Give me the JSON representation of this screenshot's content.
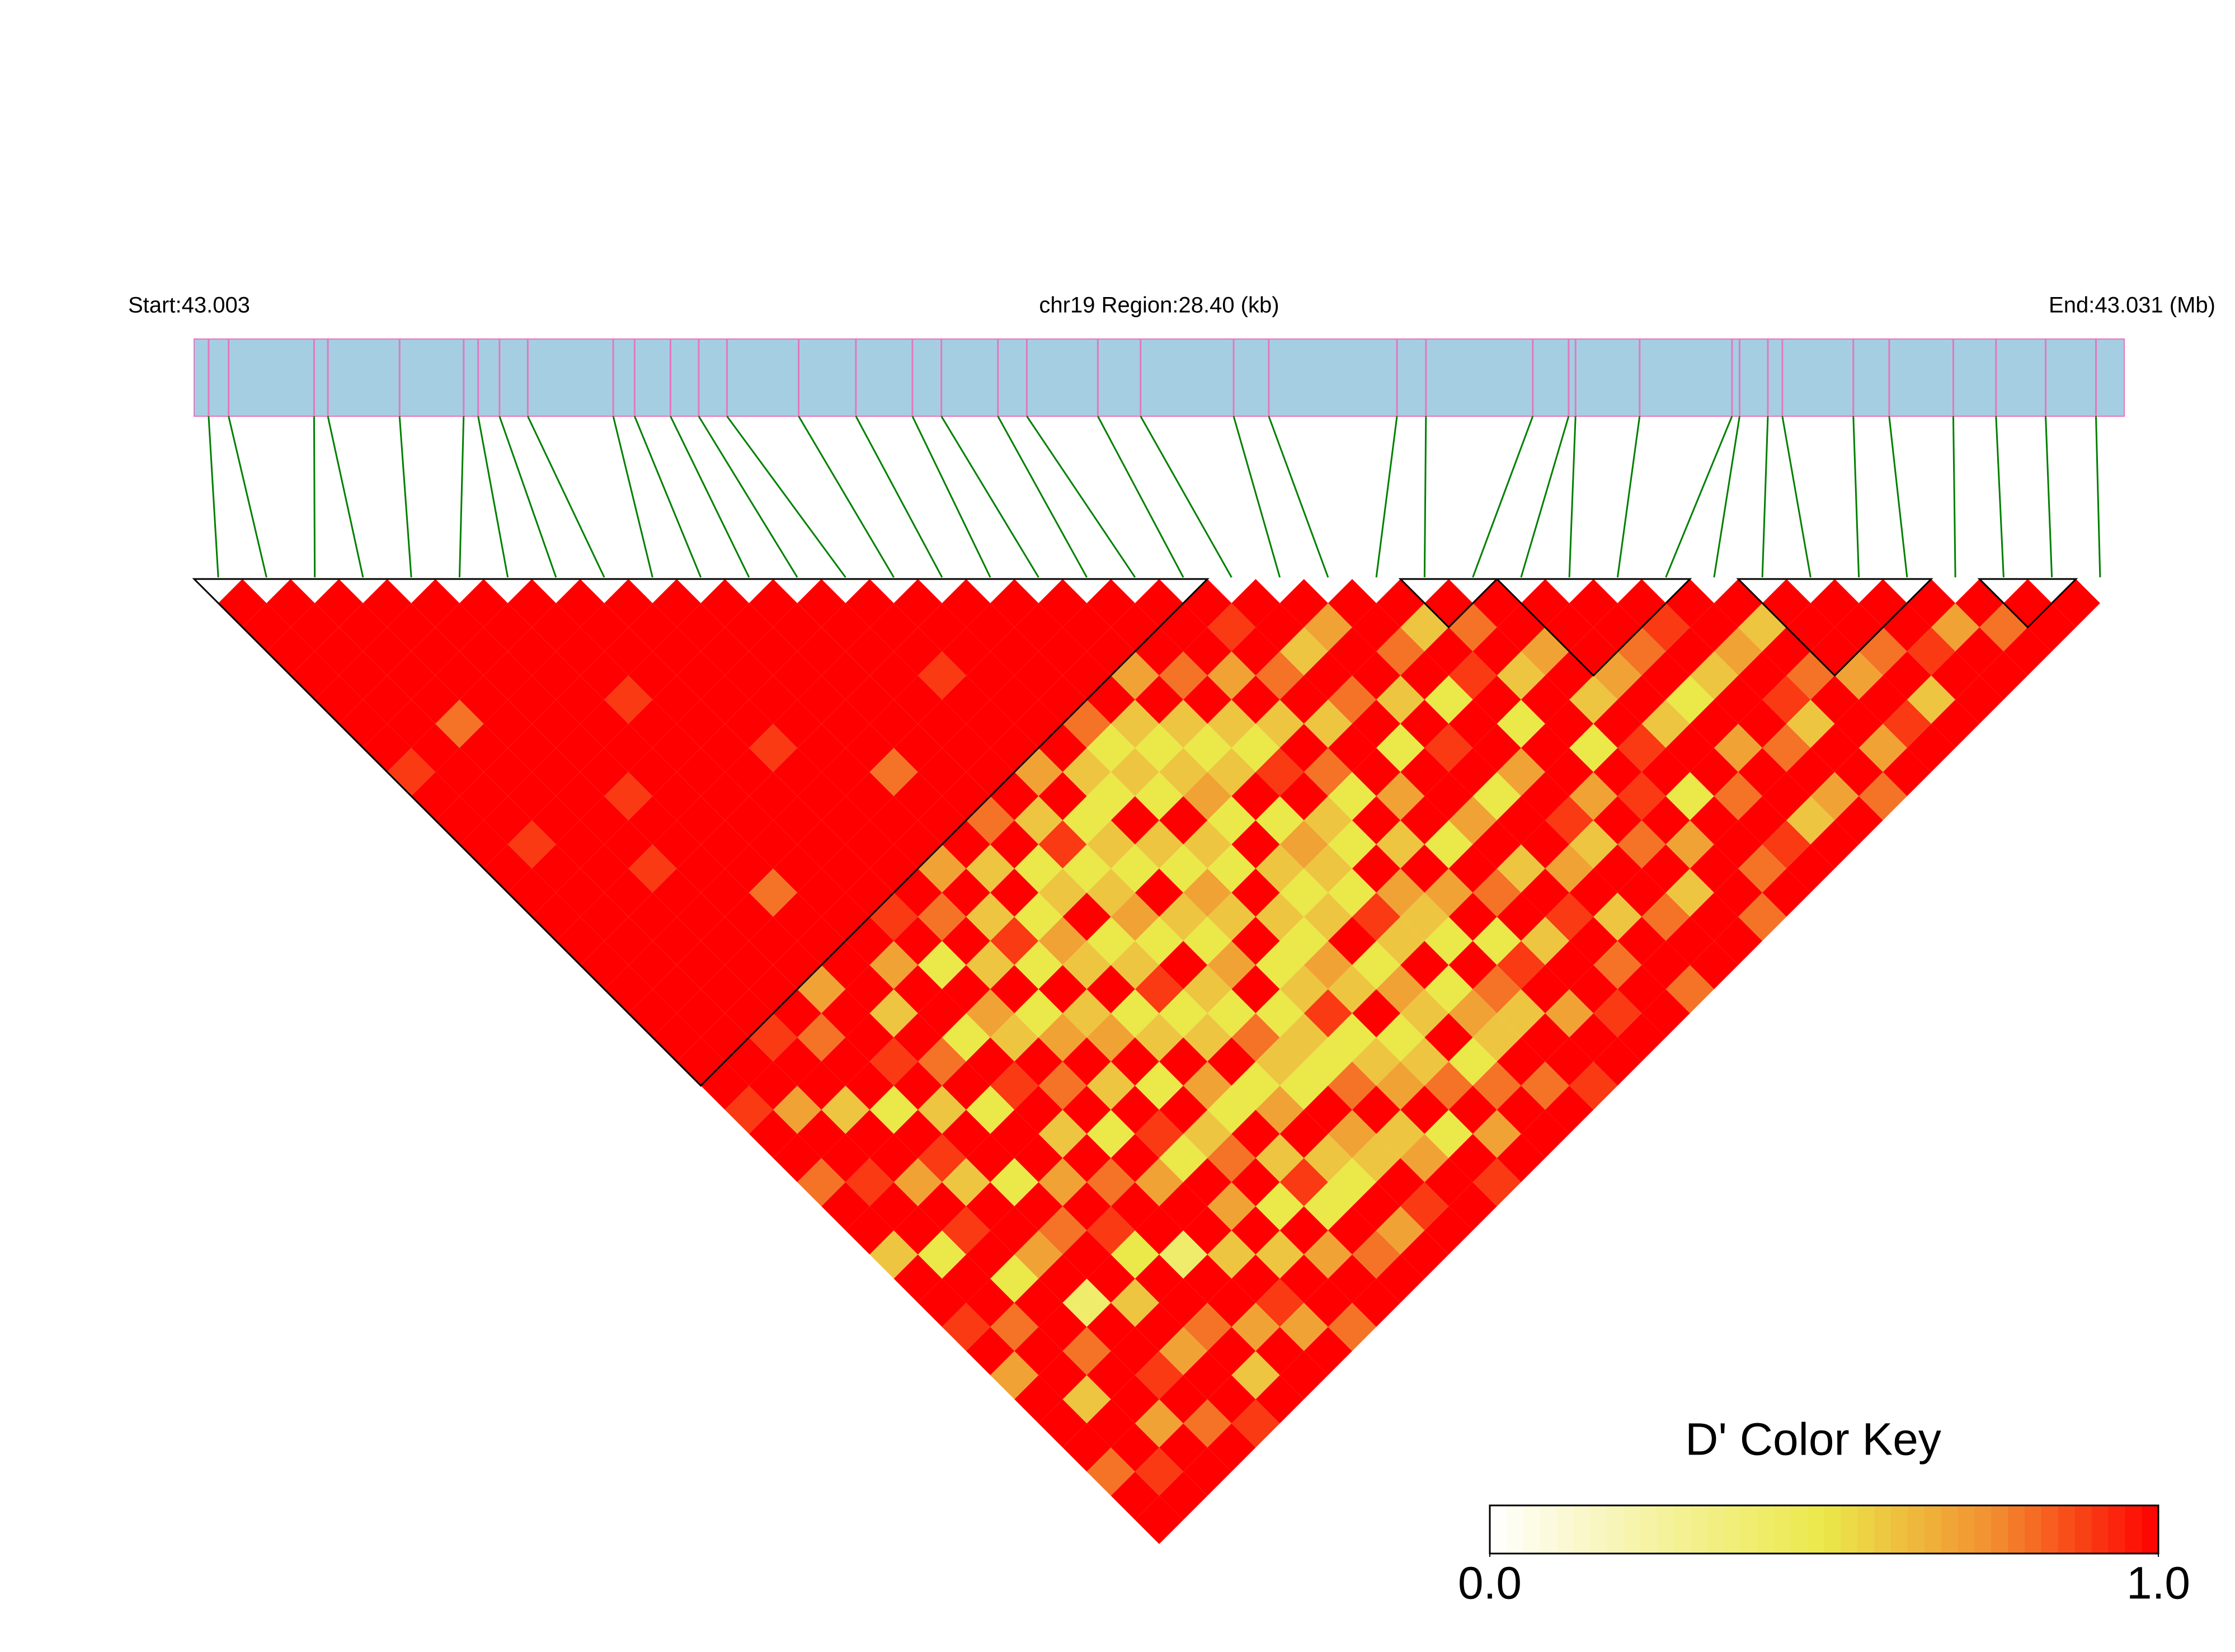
{
  "chart_data": {
    "type": "ld_heatmap",
    "header": {
      "start": "Start:43.003",
      "region": "chr19 Region:28.40 (kb)",
      "end": "End:43.031 (Mb)"
    },
    "xlim": [
      43.003,
      43.031
    ],
    "positions": [
      43.00321,
      43.0035,
      43.00474,
      43.00494,
      43.00598,
      43.00691,
      43.00712,
      43.00743,
      43.00784,
      43.00908,
      43.00939,
      43.00991,
      43.01032,
      43.01073,
      43.01177,
      43.0126,
      43.01342,
      43.01384,
      43.01466,
      43.01508,
      43.01611,
      43.01673,
      43.01808,
      43.01859,
      43.02045,
      43.02087,
      43.02242,
      43.02294,
      43.02304,
      43.02397,
      43.02531,
      43.02542,
      43.02583,
      43.02604,
      43.02707,
      43.02759,
      43.02852,
      43.02914,
      43.02986,
      43.03059
    ],
    "dprime": [
      [
        1,
        1,
        1,
        1,
        1,
        1,
        1,
        0.9,
        1,
        1,
        1,
        1,
        1,
        1,
        1,
        1,
        1,
        1,
        1,
        1,
        1,
        0.9,
        1,
        1,
        0.8,
        1,
        1,
        0.6,
        1,
        1,
        0.9,
        1,
        0.7,
        1,
        1,
        1,
        0.8,
        1,
        1
      ],
      [
        1,
        1,
        1,
        1,
        1,
        1,
        1,
        1,
        1,
        1,
        0.9,
        1,
        1,
        1,
        1,
        1,
        1,
        1,
        1,
        1,
        1,
        0.7,
        1,
        1,
        0.9,
        1,
        1,
        0.5,
        1,
        1,
        0.8,
        1,
        1,
        0.6,
        1,
        1,
        0.9,
        1
      ],
      [
        1,
        1,
        1,
        1,
        1,
        0.8,
        1,
        1,
        1,
        1,
        1,
        1,
        1,
        1,
        1,
        1,
        1,
        1,
        0.9,
        1,
        1,
        0.6,
        1,
        1,
        0.7,
        1,
        0.9,
        1,
        0.5,
        1,
        1,
        0.8,
        1,
        1,
        0.7,
        1,
        1
      ],
      [
        1,
        1,
        1,
        1,
        1,
        1,
        1,
        1,
        1,
        1,
        1,
        0.9,
        1,
        1,
        1,
        1,
        1,
        1,
        0.8,
        1,
        1,
        0.5,
        1,
        0.9,
        0.6,
        1,
        1,
        0.7,
        1,
        0.4,
        1,
        1,
        0.9,
        1,
        0.8,
        1
      ],
      [
        1,
        1,
        1,
        1,
        1,
        1,
        1,
        1,
        0.9,
        1,
        1,
        1,
        1,
        1,
        1,
        1,
        0.7,
        1,
        1,
        0.9,
        1,
        0.6,
        1,
        1,
        0.5,
        1,
        0.8,
        1,
        1,
        0.6,
        1,
        0.7,
        1,
        1,
        0.9
      ],
      [
        1,
        1,
        1,
        1,
        1,
        1,
        1,
        1,
        1,
        1,
        1,
        1,
        0.8,
        1,
        1,
        1,
        1,
        0.6,
        1,
        0.8,
        1,
        0.5,
        1,
        1,
        0.7,
        1,
        0.9,
        0.5,
        1,
        1,
        0.8,
        1,
        0.6,
        1
      ],
      [
        1,
        1,
        1,
        1,
        0.9,
        1,
        1,
        1,
        1,
        1,
        1,
        1,
        1,
        1,
        1,
        0.7,
        1,
        1,
        0.5,
        1,
        0.9,
        1,
        0.6,
        1,
        0.8,
        1,
        1,
        0.4,
        1,
        1,
        0.7,
        1,
        1
      ],
      [
        1,
        1,
        1,
        1,
        1,
        1,
        1,
        1,
        1,
        1,
        1,
        1,
        1,
        0.9,
        1,
        0.5,
        1,
        0.7,
        0.6,
        1,
        0.8,
        1,
        0.5,
        1,
        0.7,
        1,
        1,
        0.6,
        1,
        0.9,
        0.7,
        1
      ],
      [
        1,
        1,
        1,
        1,
        1,
        1,
        0.9,
        1,
        1,
        1,
        1,
        1,
        1,
        0.8,
        1,
        0.6,
        1,
        0.5,
        0.7,
        1,
        0.6,
        1,
        0.9,
        0.5,
        1,
        0.7,
        1,
        0.6,
        1,
        1,
        0.8
      ],
      [
        1,
        1,
        1,
        1,
        1,
        1,
        1,
        1,
        1,
        1,
        1,
        0.7,
        1,
        0.6,
        0.9,
        0.5,
        1,
        0.6,
        0.7,
        1,
        0.5,
        1,
        0.6,
        0.8,
        1,
        0.5,
        1,
        0.7,
        1,
        1
      ],
      [
        1,
        1,
        1,
        1,
        1,
        1,
        1,
        0.8,
        1,
        1,
        1,
        0.6,
        1,
        0.5,
        0.7,
        0.6,
        1,
        0.5,
        0.6,
        1,
        0.7,
        0.5,
        1,
        0.6,
        0.9,
        0.5,
        1,
        0.8,
        1
      ],
      [
        1,
        1,
        1,
        1,
        1,
        1,
        1,
        1,
        1,
        0.8,
        1,
        0.5,
        0.6,
        1,
        0.5,
        0.6,
        0.9,
        0.5,
        0.6,
        1,
        0.5,
        0.7,
        1,
        0.6,
        0.5,
        1,
        0.7,
        1
      ],
      [
        1,
        1,
        1,
        1,
        1,
        1,
        1,
        1,
        1,
        0.6,
        0.9,
        0.5,
        0.6,
        0.7,
        0.5,
        1,
        0.6,
        0.5,
        0.8,
        0.6,
        0.5,
        1,
        0.7,
        0.6,
        1,
        0.9,
        1
      ],
      [
        1,
        1,
        1,
        0.9,
        1,
        1,
        1,
        0.7,
        1,
        0.5,
        0.6,
        0.5,
        1,
        0.6,
        0.5,
        0.7,
        1,
        0.5,
        0.6,
        0.5,
        0.8,
        1,
        0.6,
        0.7,
        1,
        1
      ],
      [
        1,
        1,
        1,
        1,
        1,
        1,
        1,
        0.6,
        0.5,
        1,
        0.6,
        0.5,
        0.7,
        0.6,
        1,
        0.5,
        0.6,
        0.9,
        0.5,
        0.6,
        0.7,
        1,
        0.5,
        1,
        0.9
      ],
      [
        1,
        1,
        1,
        1,
        1,
        0.8,
        0.5,
        0.6,
        0.5,
        1,
        0.6,
        0.5,
        1,
        0.6,
        0.5,
        0.7,
        0.6,
        1,
        0.5,
        0.6,
        0.8,
        1,
        0.7,
        1
      ],
      [
        1,
        1,
        1,
        1,
        1,
        0.6,
        0.5,
        0.6,
        0.7,
        0.5,
        1,
        0.6,
        0.5,
        0.6,
        1,
        0.5,
        0.7,
        0.6,
        1,
        0.5,
        0.8,
        1,
        1
      ],
      [
        1,
        1,
        1,
        0.7,
        1,
        0.6,
        0.5,
        0.6,
        1,
        0.5,
        0.7,
        0.6,
        0.5,
        0.9,
        0.6,
        1,
        0.5,
        0.7,
        0.6,
        1,
        0.8,
        1
      ],
      [
        1,
        1,
        1,
        0.8,
        1,
        0.6,
        0.5,
        0.9,
        1,
        0.6,
        0.5,
        1,
        0.7,
        0.6,
        0.5,
        1,
        0.8,
        0.6,
        1,
        1,
        0.9
      ],
      [
        1,
        1,
        1,
        0.7,
        1,
        0.6,
        1,
        0.8,
        0.5,
        1,
        0.6,
        1,
        0.7,
        1,
        0.5,
        0.9,
        1,
        0.7,
        1,
        1
      ],
      [
        1,
        0.9,
        1,
        0.8,
        1,
        0.6,
        1,
        1,
        0.7,
        1,
        0.5,
        1,
        0.8,
        1,
        0.6,
        1,
        1,
        0.9,
        1
      ],
      [
        1,
        1,
        0.6,
        1,
        0.8,
        1,
        0.5,
        1,
        1,
        0.7,
        1,
        0.6,
        1,
        0.9,
        1,
        0.8,
        1,
        1
      ],
      [
        1,
        0.7,
        1,
        1,
        0.6,
        1,
        0.9,
        1,
        0.5,
        1,
        1,
        0.7,
        1,
        0.6,
        1,
        1,
        0.8
      ],
      [
        1,
        1,
        0.8,
        1,
        0.5,
        1,
        1,
        0.7,
        1,
        0.9,
        0.6,
        1,
        1,
        0.8,
        1,
        1
      ],
      [
        1,
        0.6,
        1,
        0.9,
        1,
        0.5,
        1,
        1,
        0.7,
        1,
        0.8,
        1,
        0.6,
        1,
        1
      ],
      [
        1,
        0.8,
        1,
        0.6,
        1,
        1,
        0.5,
        1,
        0.9,
        1,
        0.7,
        1,
        1,
        0.8
      ],
      [
        1,
        1,
        0.7,
        1,
        0.6,
        1,
        0.9,
        1,
        0.5,
        1,
        1,
        0.8,
        1
      ],
      [
        1,
        1,
        1,
        0.7,
        1,
        0.6,
        1,
        1,
        0.8,
        1,
        0.9,
        1
      ],
      [
        1,
        1,
        0.8,
        1,
        0.5,
        1,
        0.7,
        1,
        1,
        0.6,
        1
      ],
      [
        1,
        0.9,
        1,
        0.6,
        1,
        1,
        0.8,
        1,
        0.7,
        1
      ],
      [
        1,
        1,
        0.7,
        1,
        0.9,
        0.6,
        1,
        1,
        0.8
      ],
      [
        1,
        0.6,
        1,
        0.8,
        1,
        1,
        0.7,
        1
      ],
      [
        1,
        1,
        1,
        0.7,
        1,
        0.9,
        1
      ],
      [
        1,
        1,
        0.8,
        1,
        0.6,
        1
      ],
      [
        1,
        1,
        0.9,
        1,
        1
      ],
      [
        1,
        0.7,
        1,
        1
      ],
      [
        1,
        0.8,
        1
      ],
      [
        1,
        1
      ],
      [
        1
      ]
    ],
    "blocks": [
      [
        0,
        20
      ],
      [
        25,
        26
      ],
      [
        27,
        30
      ],
      [
        32,
        35
      ],
      [
        37,
        38
      ]
    ],
    "bar_color": "#a6cee3",
    "snp_line_color": "#e377c2",
    "link_color": "#008000",
    "colors": [
      "#ffffff",
      "#f6f2a0",
      "#ebe84a",
      "#f29030",
      "#ff0000"
    ],
    "key": {
      "title": "D' Color Key",
      "lim": [
        0,
        1
      ],
      "ticks": [
        {
          "value": 0,
          "label": "0.0"
        },
        {
          "value": 1,
          "label": "1.0"
        }
      ]
    }
  }
}
